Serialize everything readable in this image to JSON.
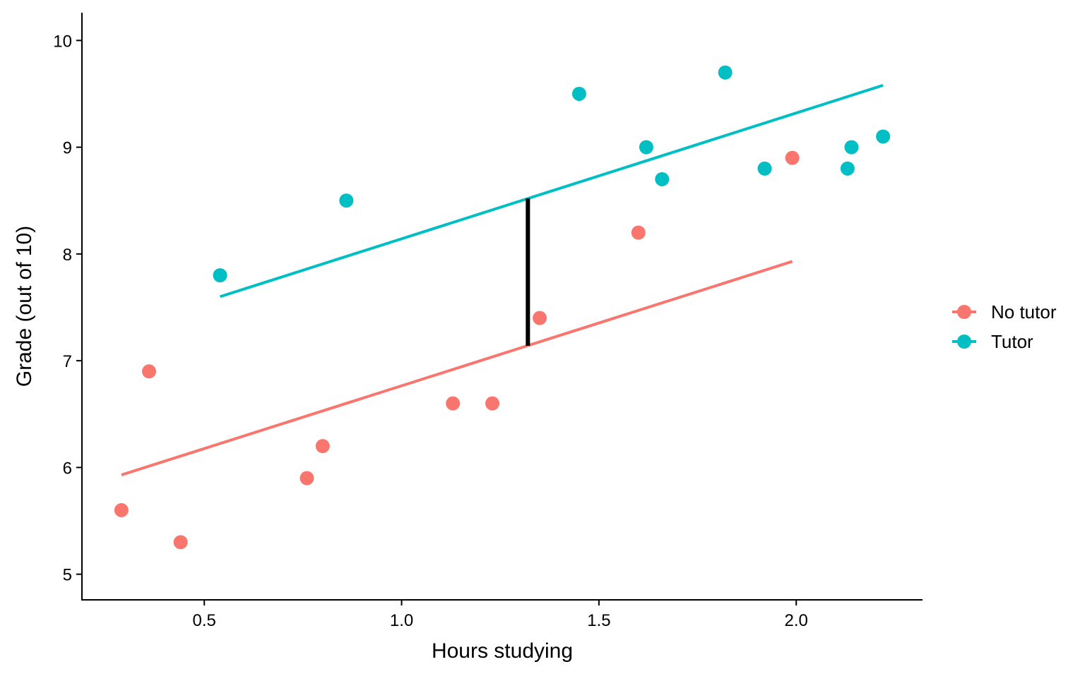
{
  "chart_data": {
    "type": "scatter",
    "title": "",
    "xlabel": "Hours studying",
    "ylabel": "Grade (out of 10)",
    "xlim": [
      0.19,
      2.32
    ],
    "ylim": [
      4.76,
      10.26
    ],
    "xticks": [
      0.5,
      1.0,
      1.5,
      2.0
    ],
    "xtick_labels": [
      "0.5",
      "1.0",
      "1.5",
      "2.0"
    ],
    "yticks": [
      5,
      6,
      7,
      8,
      9,
      10
    ],
    "ytick_labels": [
      "5",
      "6",
      "7",
      "8",
      "9",
      "10"
    ],
    "grid": false,
    "legend_position": "right",
    "series": [
      {
        "name": "No tutor",
        "color": "#F8766D",
        "points": [
          {
            "x": 0.29,
            "y": 5.6
          },
          {
            "x": 0.36,
            "y": 6.9
          },
          {
            "x": 0.44,
            "y": 5.3
          },
          {
            "x": 0.76,
            "y": 5.9
          },
          {
            "x": 0.8,
            "y": 6.2
          },
          {
            "x": 1.13,
            "y": 6.6
          },
          {
            "x": 1.23,
            "y": 6.6
          },
          {
            "x": 1.35,
            "y": 7.4
          },
          {
            "x": 1.6,
            "y": 8.2
          },
          {
            "x": 1.99,
            "y": 8.9
          }
        ],
        "fit_line": {
          "x1": 0.29,
          "y1": 5.93,
          "x2": 1.99,
          "y2": 7.93
        }
      },
      {
        "name": "Tutor",
        "color": "#00BFC4",
        "points": [
          {
            "x": 0.54,
            "y": 7.8
          },
          {
            "x": 0.86,
            "y": 8.5
          },
          {
            "x": 1.45,
            "y": 9.5
          },
          {
            "x": 1.62,
            "y": 9.0
          },
          {
            "x": 1.66,
            "y": 8.7
          },
          {
            "x": 1.82,
            "y": 9.7
          },
          {
            "x": 1.92,
            "y": 8.8
          },
          {
            "x": 2.13,
            "y": 8.8
          },
          {
            "x": 2.14,
            "y": 9.0
          },
          {
            "x": 2.22,
            "y": 9.1
          }
        ],
        "fit_line": {
          "x1": 0.54,
          "y1": 7.6,
          "x2": 2.22,
          "y2": 9.58
        }
      }
    ],
    "annotations": [
      {
        "type": "vertical-segment",
        "x": 1.32,
        "y1": 7.14,
        "y2": 8.52,
        "color": "#000000"
      }
    ]
  }
}
